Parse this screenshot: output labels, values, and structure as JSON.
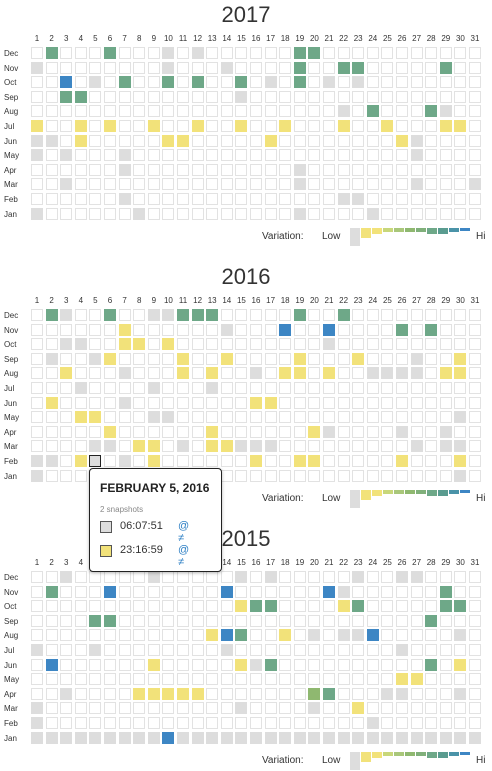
{
  "day_numbers": [
    "1",
    "2",
    "3",
    "4",
    "5",
    "6",
    "7",
    "8",
    "9",
    "10",
    "11",
    "12",
    "13",
    "14",
    "15",
    "16",
    "17",
    "18",
    "19",
    "20",
    "21",
    "22",
    "23",
    "24",
    "25",
    "26",
    "27",
    "28",
    "29",
    "30",
    "31"
  ],
  "months": [
    "Dec",
    "Nov",
    "Oct",
    "Sep",
    "Aug",
    "Jul",
    "Jun",
    "May",
    "Apr",
    "Mar",
    "Feb",
    "Jan"
  ],
  "colors": {
    "empty": "#ffffff",
    "gray": "#dddddd",
    "yellow": "#f2e27a",
    "green": "#6ea888",
    "lime": "#8fb870",
    "blue": "#3d86c4"
  },
  "legend": {
    "label": "Variation:",
    "low": "Low",
    "high": "Hi"
  },
  "years": [
    {
      "title": "2017",
      "cells": {
        "Dec": {
          "2": "green",
          "6": "green",
          "10": "gray",
          "12": "gray",
          "19": "green",
          "20": "green"
        },
        "Nov": {
          "1": "gray",
          "10": "gray",
          "14": "gray",
          "19": "green",
          "22": "green",
          "23": "green",
          "29": "green"
        },
        "Oct": {
          "3": "blue",
          "5": "gray",
          "7": "green",
          "10": "green",
          "12": "green",
          "15": "green",
          "17": "gray",
          "19": "green",
          "21": "gray",
          "23": "gray"
        },
        "Sep": {
          "3": "green",
          "4": "green",
          "15": "gray"
        },
        "Aug": {
          "22": "gray",
          "24": "green",
          "28": "green",
          "29": "gray"
        },
        "Jul": {
          "1": "yellow",
          "4": "yellow",
          "6": "yellow",
          "9": "yellow",
          "12": "yellow",
          "15": "yellow",
          "18": "yellow",
          "22": "yellow",
          "25": "yellow",
          "29": "yellow",
          "30": "yellow"
        },
        "Jun": {
          "1": "gray",
          "2": "gray",
          "4": "yellow",
          "10": "yellow",
          "11": "yellow",
          "17": "yellow",
          "26": "yellow",
          "27": "gray"
        },
        "May": {
          "1": "gray",
          "3": "gray",
          "7": "gray",
          "27": "gray"
        },
        "Apr": {
          "7": "gray",
          "19": "gray"
        },
        "Mar": {
          "3": "gray",
          "19": "gray",
          "27": "gray",
          "31": "gray"
        },
        "Feb": {
          "7": "gray",
          "22": "gray",
          "23": "gray"
        },
        "Jan": {
          "1": "gray",
          "8": "gray",
          "19": "gray",
          "24": "gray"
        }
      }
    },
    {
      "title": "2016",
      "cells": {
        "Dec": {
          "2": "green",
          "3": "gray",
          "6": "green",
          "9": "gray",
          "10": "gray",
          "11": "green",
          "12": "green",
          "13": "green",
          "19": "green",
          "22": "green"
        },
        "Nov": {
          "7": "yellow",
          "14": "gray",
          "18": "blue",
          "21": "blue",
          "26": "green",
          "28": "green"
        },
        "Oct": {
          "3": "gray",
          "4": "gray",
          "7": "yellow",
          "8": "yellow",
          "10": "yellow",
          "21": "gray"
        },
        "Sep": {
          "2": "gray",
          "5": "gray",
          "6": "yellow",
          "11": "yellow",
          "14": "yellow",
          "19": "yellow",
          "23": "yellow",
          "27": "gray",
          "30": "yellow"
        },
        "Aug": {
          "3": "yellow",
          "7": "gray",
          "11": "yellow",
          "13": "yellow",
          "16": "gray",
          "18": "yellow",
          "19": "yellow",
          "21": "yellow",
          "24": "gray",
          "25": "gray",
          "26": "gray",
          "27": "gray",
          "29": "yellow",
          "30": "yellow"
        },
        "Jul": {
          "4": "gray",
          "9": "gray",
          "13": "gray"
        },
        "Jun": {
          "2": "yellow",
          "7": "gray",
          "16": "yellow",
          "17": "yellow"
        },
        "May": {
          "4": "yellow",
          "5": "yellow",
          "9": "gray",
          "10": "gray",
          "30": "gray"
        },
        "Apr": {
          "6": "yellow",
          "13": "yellow",
          "20": "yellow",
          "21": "gray",
          "26": "gray",
          "29": "gray"
        },
        "Mar": {
          "5": "gray",
          "6": "gray",
          "8": "yellow",
          "9": "yellow",
          "11": "gray",
          "13": "yellow",
          "14": "yellow",
          "15": "gray",
          "16": "gray",
          "17": "gray",
          "27": "gray",
          "29": "gray",
          "30": "gray"
        },
        "Feb": {
          "1": "gray",
          "2": "gray",
          "4": "yellow",
          "5": "gray",
          "7": "gray",
          "9": "yellow",
          "16": "yellow",
          "19": "yellow",
          "20": "yellow",
          "26": "yellow",
          "30": "yellow"
        },
        "Jan": {
          "1": "gray",
          "5": "gray",
          "6": "gray",
          "9": "gray",
          "10": "gray",
          "12": "gray",
          "30": "gray"
        }
      }
    },
    {
      "title": "2015",
      "cells": {
        "Dec": {
          "3": "gray",
          "9": "gray",
          "15": "gray",
          "17": "gray",
          "23": "gray",
          "26": "gray",
          "27": "gray"
        },
        "Nov": {
          "2": "green",
          "6": "blue",
          "14": "blue",
          "21": "blue",
          "22": "gray",
          "29": "green"
        },
        "Oct": {
          "15": "yellow",
          "16": "green",
          "17": "green",
          "22": "yellow",
          "23": "green",
          "29": "green",
          "30": "green"
        },
        "Sep": {
          "5": "green",
          "6": "green",
          "28": "green"
        },
        "Aug": {
          "13": "yellow",
          "14": "blue",
          "15": "green",
          "18": "yellow",
          "20": "gray",
          "22": "gray",
          "23": "gray",
          "24": "blue",
          "30": "gray"
        },
        "Jul": {
          "1": "gray",
          "5": "gray",
          "14": "gray",
          "26": "gray"
        },
        "Jun": {
          "2": "blue",
          "9": "yellow",
          "15": "yellow",
          "16": "gray",
          "17": "green",
          "28": "green",
          "30": "yellow"
        },
        "May": {
          "26": "yellow",
          "27": "yellow"
        },
        "Apr": {
          "3": "gray",
          "8": "yellow",
          "9": "yellow",
          "10": "yellow",
          "11": "yellow",
          "12": "yellow",
          "20": "lime",
          "21": "green",
          "25": "gray",
          "26": "gray",
          "30": "gray"
        },
        "Mar": {
          "1": "gray",
          "15": "gray",
          "20": "gray",
          "23": "yellow"
        },
        "Feb": {
          "1": "gray",
          "24": "gray"
        },
        "Jan": {
          "1": "gray",
          "2": "gray",
          "3": "gray",
          "4": "gray",
          "5": "gray",
          "6": "gray",
          "7": "gray",
          "8": "gray",
          "9": "gray",
          "10": "blue",
          "11": "gray",
          "12": "gray",
          "13": "gray",
          "14": "gray",
          "15": "gray",
          "16": "gray",
          "17": "gray",
          "18": "gray",
          "19": "gray",
          "20": "gray",
          "21": "gray",
          "22": "gray",
          "23": "gray",
          "24": "gray",
          "25": "gray",
          "26": "gray",
          "27": "gray",
          "28": "gray",
          "29": "gray",
          "30": "gray",
          "31": "gray"
        }
      }
    }
  ],
  "tooltip": {
    "title": "FEBRUARY 5, 2016",
    "subtitle": "2 snapshots",
    "snapshots": [
      {
        "time": "06:07:51",
        "links": "@ ≠",
        "color": "gray"
      },
      {
        "time": "23:16:59",
        "links": "@ ≠",
        "color": "yellow"
      }
    ]
  }
}
